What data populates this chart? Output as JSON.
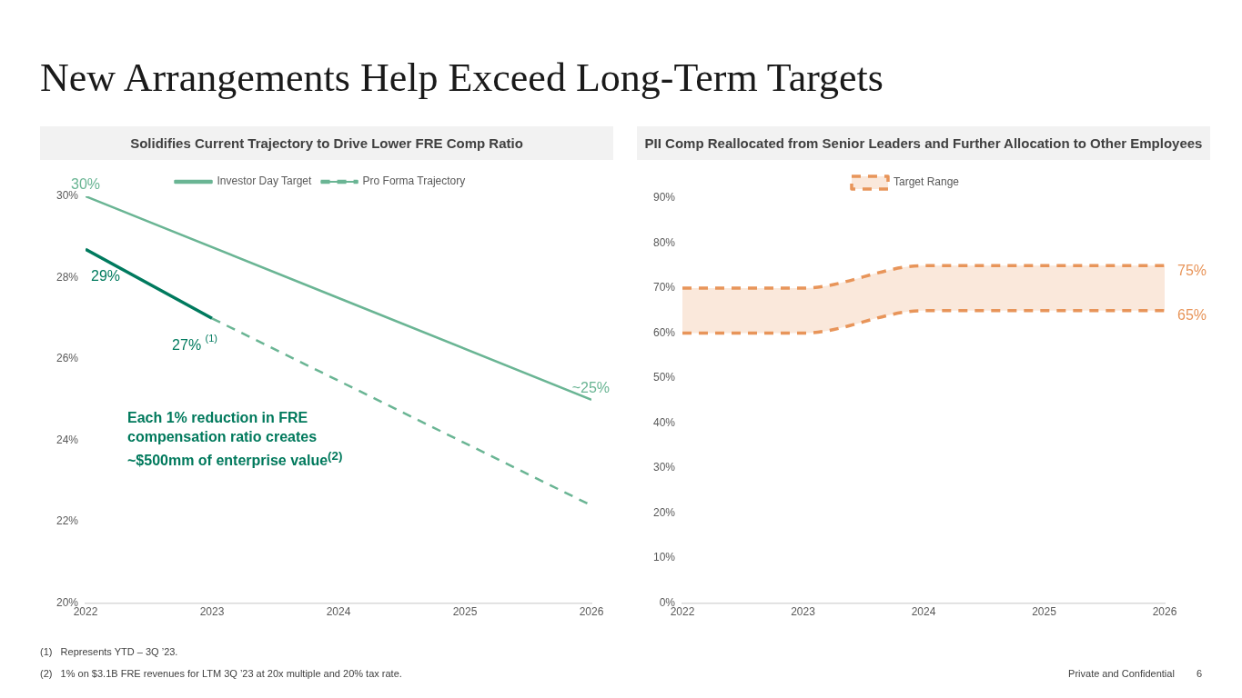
{
  "chart_data": [
    {
      "type": "other",
      "title": "New Arrangements Help Exceed Long-Term Targets",
      "annotations": [
        "(1)   Represents YTD – 3Q ’23.",
        "(2)   1% on $3.1B FRE revenues for LTM 3Q ’23 at 20x multiple and 20% tax rate.",
        "Private and Confidential",
        "6"
      ]
    },
    {
      "type": "line",
      "title": "Solidifies Current Trajectory to Drive Lower FRE Comp Ratio",
      "xlim": [
        2022,
        2026
      ],
      "xticks": [
        2022,
        2023,
        2024,
        2025,
        2026
      ],
      "ylim": [
        20,
        30
      ],
      "yticks": [
        {
          "value": 20,
          "label": "20%"
        },
        {
          "value": 22,
          "label": "22%"
        },
        {
          "value": 24,
          "label": "24%"
        },
        {
          "value": 26,
          "label": "26%"
        },
        {
          "value": 28,
          "label": "28%"
        },
        {
          "value": 30,
          "label": "30%"
        }
      ],
      "grid": false,
      "legend": "top",
      "marker": "none",
      "annotations": [
        "Each 1% reduction in FRE compensation ratio creates ~$500mm of enterprise value$^{(2)}$"
      ],
      "series": [
        {
          "name": "Investor Day Target",
          "color": "#6ab594",
          "x": [
            2022,
            2026
          ],
          "values": [
            30,
            25
          ],
          "value_labels": [
            "30%",
            "~25%"
          ],
          "line_style": "solid"
        },
        {
          "color": "#007a5e",
          "x": [
            2022,
            2023
          ],
          "values": [
            28.7,
            27
          ],
          "value_labels": [
            "29%",
            "27% $^{(1)}$"
          ],
          "line_style": "solid"
        },
        {
          "name": "Pro Forma Trajectory",
          "color": "#6ab594",
          "x": [
            2023,
            2026
          ],
          "values": [
            27,
            22.4
          ],
          "line_style": "dashed"
        }
      ]
    },
    {
      "type": "line",
      "title": "PII Comp Reallocated from Senior Leaders and Further Allocation to Other Employees",
      "xlim": [
        2022,
        2026
      ],
      "xticks": [
        2022,
        2023,
        2024,
        2025,
        2026
      ],
      "ylim": [
        0,
        90
      ],
      "yticks": [
        {
          "value": 0,
          "label": "0%"
        },
        {
          "value": 10,
          "label": "10%"
        },
        {
          "value": 20,
          "label": "20%"
        },
        {
          "value": 30,
          "label": "30%"
        },
        {
          "value": 40,
          "label": "40%"
        },
        {
          "value": 50,
          "label": "50%"
        },
        {
          "value": 60,
          "label": "60%"
        },
        {
          "value": 70,
          "label": "70%"
        },
        {
          "value": 80,
          "label": "80%"
        },
        {
          "value": 90,
          "label": "90%"
        }
      ],
      "grid": false,
      "legend": "top",
      "marker": "none",
      "series": [
        {
          "name": "Target Range",
          "type": "area",
          "color": "#e8955a",
          "x": [
            2022,
            2023,
            2024,
            2025,
            2026
          ],
          "values": [
            70,
            70,
            75,
            75,
            75
          ],
          "value_labels": [
            null,
            null,
            null,
            null,
            "75%"
          ],
          "line_style": "dashed"
        },
        {
          "type": "line",
          "color": "#e8955a",
          "x": [
            2022,
            2023,
            2024,
            2025,
            2026
          ],
          "values": [
            60,
            60,
            65,
            65,
            65
          ],
          "value_labels": [
            null,
            null,
            null,
            null,
            "65%"
          ],
          "line_style": "dashed"
        }
      ]
    }
  ]
}
